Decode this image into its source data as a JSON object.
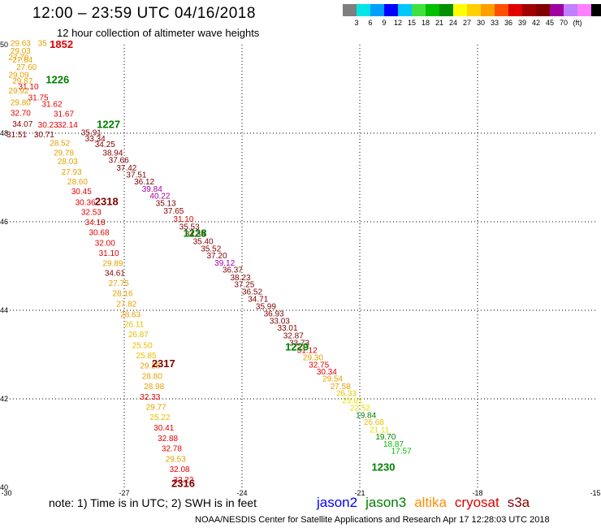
{
  "title": "12:00 – 23:59 UTC 04/16/2018",
  "subtitle": "12 hour collection of altimeter wave heights",
  "colorbar": {
    "colors": [
      "#7f7f7f",
      "#00e5e5",
      "#00a0ff",
      "#0000ff",
      "#00c8ff",
      "#40e040",
      "#00c000",
      "#009000",
      "#ffff00",
      "#ffd000",
      "#ffa000",
      "#ff5000",
      "#e00000",
      "#a00000",
      "#800000",
      "#a000a0",
      "#c080ff",
      "#ff80ff",
      "#000000"
    ],
    "ticks": [
      "3",
      "6",
      "9",
      "12",
      "15",
      "18",
      "21",
      "24",
      "27",
      "30",
      "33",
      "36",
      "39",
      "42",
      "45",
      "70",
      "(ft)"
    ]
  },
  "axes": {
    "lon_ticks": [
      "-30",
      "-27",
      "-24",
      "-21",
      "-18",
      "-15"
    ],
    "lat_ticks": [
      "50",
      "48",
      "46",
      "44",
      "42",
      "40"
    ]
  },
  "note": "note: 1) Time is in UTC; 2) SWH is in feet",
  "legend": [
    {
      "label": "jason2",
      "color": "#0000ff"
    },
    {
      "label": "jason3",
      "color": "#008000"
    },
    {
      "label": "altika",
      "color": "#ff8c00"
    },
    {
      "label": "cryosat",
      "color": "#e00000"
    },
    {
      "label": "s3a",
      "color": "#800000"
    }
  ],
  "credit": "NOAA/NESDIS Center for Satellite Applications and Research    Apr 17 12:28:03 UTC 2018",
  "time_labels": [
    {
      "text": "1852",
      "color": "#e00000",
      "lon": -28.9,
      "lat": 49.93
    },
    {
      "text": "1226",
      "color": "#008000",
      "lon": -29.0,
      "lat": 49.13
    },
    {
      "text": "1227",
      "color": "#008000",
      "lon": -27.7,
      "lat": 48.12
    },
    {
      "text": "2318",
      "color": "#800000",
      "lon": -27.75,
      "lat": 46.38
    },
    {
      "text": "1228",
      "color": "#008000",
      "lon": -25.5,
      "lat": 45.66
    },
    {
      "text": "1229",
      "color": "#008000",
      "lon": -22.9,
      "lat": 43.09
    },
    {
      "text": "2317",
      "color": "#800000",
      "lon": -26.3,
      "lat": 42.72
    },
    {
      "text": "1230",
      "color": "#008000",
      "lon": -20.7,
      "lat": 40.38
    },
    {
      "text": "2316",
      "color": "#800000",
      "lon": -25.8,
      "lat": 40.01
    }
  ],
  "wave_heights": [
    {
      "v": "29.63",
      "c": "#e5a000",
      "lon": -29.9,
      "lat": 49.97
    },
    {
      "v": "35",
      "c": "#e5a000",
      "lon": -29.2,
      "lat": 49.97
    },
    {
      "v": "29.03",
      "c": "#e5a000",
      "lon": -29.9,
      "lat": 49.8
    },
    {
      "v": "27.70",
      "c": "#e5a000",
      "lon": -29.95,
      "lat": 49.65
    },
    {
      "v": "27.64",
      "c": "#e5a000",
      "lon": -29.85,
      "lat": 49.6
    },
    {
      "v": "27.60",
      "c": "#e5a000",
      "lon": -29.75,
      "lat": 49.43
    },
    {
      "v": "29.09",
      "c": "#e5a000",
      "lon": -29.95,
      "lat": 49.26
    },
    {
      "v": "29.87",
      "c": "#e5a000",
      "lon": -29.85,
      "lat": 49.12
    },
    {
      "v": "31.10",
      "c": "#e00000",
      "lon": -29.7,
      "lat": 48.99
    },
    {
      "v": "29.92",
      "c": "#e5a000",
      "lon": -29.95,
      "lat": 48.9
    },
    {
      "v": "31.75",
      "c": "#e00000",
      "lon": -29.45,
      "lat": 48.74
    },
    {
      "v": "29.80",
      "c": "#e5a000",
      "lon": -29.9,
      "lat": 48.63
    },
    {
      "v": "31.62",
      "c": "#e00000",
      "lon": -29.1,
      "lat": 48.6
    },
    {
      "v": "32.70",
      "c": "#e00000",
      "lon": -29.9,
      "lat": 48.39
    },
    {
      "v": "31.67",
      "c": "#e00000",
      "lon": -28.8,
      "lat": 48.38
    },
    {
      "v": "34.07",
      "c": "#800000",
      "lon": -29.85,
      "lat": 48.15
    },
    {
      "v": "30.23",
      "c": "#e00000",
      "lon": -29.2,
      "lat": 48.13
    },
    {
      "v": "32.14",
      "c": "#e00000",
      "lon": -28.7,
      "lat": 48.13
    },
    {
      "v": "31.51",
      "c": "#800000",
      "lon": -30.0,
      "lat": 47.91
    },
    {
      "v": "30.71",
      "c": "#800000",
      "lon": -29.3,
      "lat": 47.91
    },
    {
      "v": "35.91",
      "c": "#800000",
      "lon": -28.1,
      "lat": 47.95
    },
    {
      "v": "33.34",
      "c": "#800000",
      "lon": -28.0,
      "lat": 47.82
    },
    {
      "v": "28.52",
      "c": "#e5a000",
      "lon": -28.9,
      "lat": 47.72
    },
    {
      "v": "34.25",
      "c": "#800000",
      "lon": -27.75,
      "lat": 47.69
    },
    {
      "v": "29.78",
      "c": "#e5a000",
      "lon": -28.8,
      "lat": 47.5
    },
    {
      "v": "38.94",
      "c": "#800000",
      "lon": -27.55,
      "lat": 47.5
    },
    {
      "v": "28.03",
      "c": "#e5a000",
      "lon": -28.7,
      "lat": 47.3
    },
    {
      "v": "37.66",
      "c": "#800000",
      "lon": -27.4,
      "lat": 47.33
    },
    {
      "v": "37.42",
      "c": "#800000",
      "lon": -27.2,
      "lat": 47.16
    },
    {
      "v": "27.93",
      "c": "#e5a000",
      "lon": -28.6,
      "lat": 47.06
    },
    {
      "v": "37.51",
      "c": "#800000",
      "lon": -26.95,
      "lat": 47.0
    },
    {
      "v": "28.60",
      "c": "#e5a000",
      "lon": -28.45,
      "lat": 46.84
    },
    {
      "v": "36.12",
      "c": "#800000",
      "lon": -26.75,
      "lat": 46.84
    },
    {
      "v": "39.84",
      "c": "#a000a0",
      "lon": -26.55,
      "lat": 46.68
    },
    {
      "v": "30.45",
      "c": "#e00000",
      "lon": -28.35,
      "lat": 46.62
    },
    {
      "v": "40.22",
      "c": "#a000a0",
      "lon": -26.35,
      "lat": 46.52
    },
    {
      "v": "30.36",
      "c": "#e00000",
      "lon": -28.25,
      "lat": 46.38
    },
    {
      "v": "35.13",
      "c": "#800000",
      "lon": -26.2,
      "lat": 46.36
    },
    {
      "v": "32.53",
      "c": "#e00000",
      "lon": -28.1,
      "lat": 46.16
    },
    {
      "v": "37.65",
      "c": "#800000",
      "lon": -26.0,
      "lat": 46.18
    },
    {
      "v": "34.18",
      "c": "#e00000",
      "lon": -28.0,
      "lat": 45.93
    },
    {
      "v": "31.10",
      "c": "#e00000",
      "lon": -25.75,
      "lat": 46.0
    },
    {
      "v": "35.53",
      "c": "#800000",
      "lon": -25.6,
      "lat": 45.83
    },
    {
      "v": "30.68",
      "c": "#e00000",
      "lon": -27.9,
      "lat": 45.7
    },
    {
      "v": "34.39",
      "c": "#800000",
      "lon": -25.45,
      "lat": 45.66
    },
    {
      "v": "32.00",
      "c": "#e00000",
      "lon": -27.75,
      "lat": 45.46
    },
    {
      "v": "35.40",
      "c": "#800000",
      "lon": -25.25,
      "lat": 45.5
    },
    {
      "v": "35.52",
      "c": "#800000",
      "lon": -25.05,
      "lat": 45.33
    },
    {
      "v": "31.10",
      "c": "#e00000",
      "lon": -27.65,
      "lat": 45.23
    },
    {
      "v": "37.20",
      "c": "#800000",
      "lon": -24.9,
      "lat": 45.17
    },
    {
      "v": "29.89",
      "c": "#e5a000",
      "lon": -27.55,
      "lat": 45.0
    },
    {
      "v": "39.12",
      "c": "#a000a0",
      "lon": -24.7,
      "lat": 45.01
    },
    {
      "v": "34.61",
      "c": "#800000",
      "lon": -27.5,
      "lat": 44.78
    },
    {
      "v": "36.37",
      "c": "#800000",
      "lon": -24.5,
      "lat": 44.85
    },
    {
      "v": "38.23",
      "c": "#800000",
      "lon": -24.3,
      "lat": 44.68
    },
    {
      "v": "27.75",
      "c": "#e5a000",
      "lon": -27.4,
      "lat": 44.55
    },
    {
      "v": "37.25",
      "c": "#800000",
      "lon": -24.2,
      "lat": 44.52
    },
    {
      "v": "28.16",
      "c": "#e5a000",
      "lon": -27.3,
      "lat": 44.32
    },
    {
      "v": "36.52",
      "c": "#800000",
      "lon": -24.0,
      "lat": 44.36
    },
    {
      "v": "27.82",
      "c": "#e5a000",
      "lon": -27.2,
      "lat": 44.08
    },
    {
      "v": "34.71",
      "c": "#800000",
      "lon": -23.85,
      "lat": 44.19
    },
    {
      "v": "35.99",
      "c": "#800000",
      "lon": -23.65,
      "lat": 44.03
    },
    {
      "v": "28.63",
      "c": "#e5a000",
      "lon": -27.1,
      "lat": 43.84
    },
    {
      "v": "36.93",
      "c": "#800000",
      "lon": -23.45,
      "lat": 43.86
    },
    {
      "v": "26.11",
      "c": "#e5c000",
      "lon": -27.0,
      "lat": 43.62
    },
    {
      "v": "33.03",
      "c": "#800000",
      "lon": -23.3,
      "lat": 43.7
    },
    {
      "v": "33.01",
      "c": "#800000",
      "lon": -23.1,
      "lat": 43.54
    },
    {
      "v": "26.87",
      "c": "#e5c000",
      "lon": -26.9,
      "lat": 43.39
    },
    {
      "v": "32.87",
      "c": "#800000",
      "lon": -22.95,
      "lat": 43.37
    },
    {
      "v": "25.50",
      "c": "#e5c000",
      "lon": -26.8,
      "lat": 43.15
    },
    {
      "v": "33.73",
      "c": "#800000",
      "lon": -22.8,
      "lat": 43.2
    },
    {
      "v": "31.12",
      "c": "#e00000",
      "lon": -22.6,
      "lat": 43.04
    },
    {
      "v": "25.85",
      "c": "#e5c000",
      "lon": -26.7,
      "lat": 42.92
    },
    {
      "v": "29.30",
      "c": "#e5a000",
      "lon": -22.45,
      "lat": 42.87
    },
    {
      "v": "29.28",
      "c": "#e5a000",
      "lon": -26.6,
      "lat": 42.69
    },
    {
      "v": "32.75",
      "c": "#e00000",
      "lon": -22.3,
      "lat": 42.71
    },
    {
      "v": "30.34",
      "c": "#e00000",
      "lon": -22.1,
      "lat": 42.55
    },
    {
      "v": "28.80",
      "c": "#e5a000",
      "lon": -26.55,
      "lat": 42.45
    },
    {
      "v": "29.54",
      "c": "#e5a000",
      "lon": -21.95,
      "lat": 42.39
    },
    {
      "v": "28.98",
      "c": "#e5a000",
      "lon": -26.5,
      "lat": 42.22
    },
    {
      "v": "27.58",
      "c": "#e5a000",
      "lon": -21.75,
      "lat": 42.22
    },
    {
      "v": "26.33",
      "c": "#e5c000",
      "lon": -21.6,
      "lat": 42.06
    },
    {
      "v": "32.33",
      "c": "#e00000",
      "lon": -26.6,
      "lat": 41.98
    },
    {
      "v": "23.61",
      "c": "#e5e000",
      "lon": -21.45,
      "lat": 41.9
    },
    {
      "v": "29.77",
      "c": "#e5a000",
      "lon": -26.45,
      "lat": 41.75
    },
    {
      "v": "22.52",
      "c": "#e5e000",
      "lon": -21.25,
      "lat": 41.73
    },
    {
      "v": "25.22",
      "c": "#e5c000",
      "lon": -26.35,
      "lat": 41.52
    },
    {
      "v": "19.84",
      "c": "#008000",
      "lon": -21.1,
      "lat": 41.57
    },
    {
      "v": "26.68",
      "c": "#e5c000",
      "lon": -20.9,
      "lat": 41.41
    },
    {
      "v": "30.41",
      "c": "#e00000",
      "lon": -26.25,
      "lat": 41.28
    },
    {
      "v": "21.11",
      "c": "#e5e000",
      "lon": -20.75,
      "lat": 41.24
    },
    {
      "v": "32.88",
      "c": "#e00000",
      "lon": -26.15,
      "lat": 41.05
    },
    {
      "v": "19.70",
      "c": "#008000",
      "lon": -20.6,
      "lat": 41.08
    },
    {
      "v": "18.87",
      "c": "#00c000",
      "lon": -20.4,
      "lat": 40.92
    },
    {
      "v": "32.78",
      "c": "#e00000",
      "lon": -26.05,
      "lat": 40.82
    },
    {
      "v": "17.57",
      "c": "#00c000",
      "lon": -20.2,
      "lat": 40.76
    },
    {
      "v": "29.53",
      "c": "#e5a000",
      "lon": -25.95,
      "lat": 40.58
    },
    {
      "v": "32.08",
      "c": "#e00000",
      "lon": -25.85,
      "lat": 40.35
    },
    {
      "v": "32.22",
      "c": "#e00000",
      "lon": -25.75,
      "lat": 40.11
    }
  ]
}
